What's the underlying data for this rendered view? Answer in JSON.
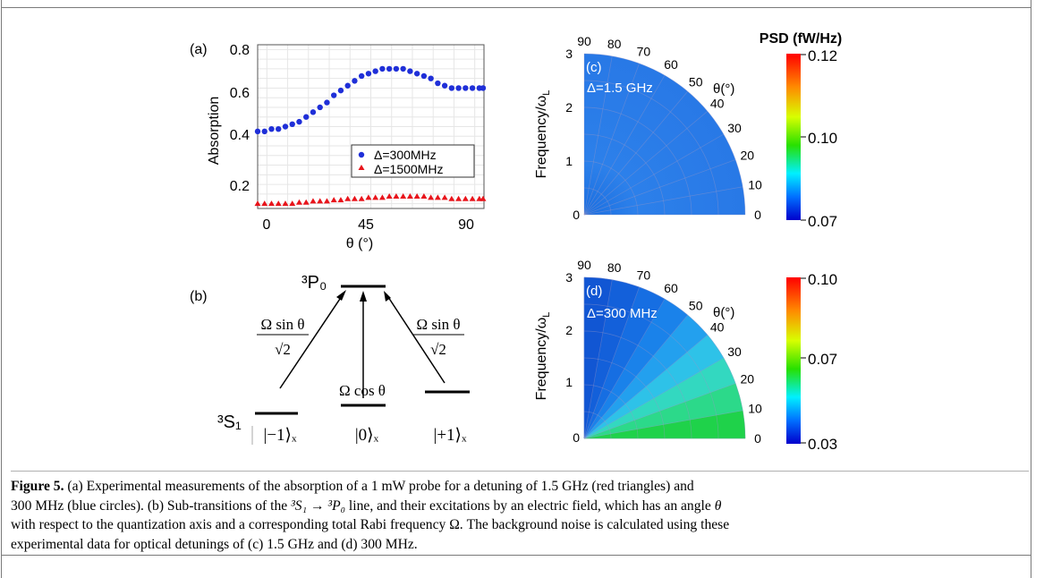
{
  "panel_a": {
    "label": "(a)",
    "ylabel": "Absorption",
    "xlabel": "θ (°)",
    "yticks": [
      "0.8",
      "0.6",
      "0.4",
      "0.2"
    ],
    "xticks": [
      "0",
      "45",
      "90"
    ],
    "legend": [
      "Δ=300MHz",
      "Δ=1500MHz"
    ],
    "colors": {
      "blue": "#1f2fd8",
      "red": "#e8141b"
    }
  },
  "chart_data": {
    "type": "scatter",
    "xlabel": "θ (°)",
    "ylabel": "Absorption",
    "xlim": [
      -4,
      94
    ],
    "ylim": [
      0.12,
      0.8
    ],
    "xticks": [
      0,
      45,
      90
    ],
    "yticks": [
      0.2,
      0.4,
      0.6,
      0.8
    ],
    "grid": true,
    "legend_position": "lower-right",
    "series": [
      {
        "name": "Δ=300MHz",
        "marker": "circle",
        "color": "#1f2fd8",
        "x": [
          -4,
          -1,
          2,
          5,
          8,
          11,
          14,
          17,
          20,
          23,
          26,
          29,
          32,
          35,
          38,
          41,
          44,
          47,
          50,
          53,
          56,
          59,
          62,
          65,
          68,
          71,
          74,
          77,
          80,
          83,
          86,
          89,
          92,
          95
        ],
        "y": [
          0.44,
          0.44,
          0.45,
          0.45,
          0.46,
          0.47,
          0.48,
          0.5,
          0.52,
          0.54,
          0.56,
          0.59,
          0.61,
          0.63,
          0.65,
          0.67,
          0.68,
          0.69,
          0.7,
          0.7,
          0.7,
          0.7,
          0.69,
          0.68,
          0.67,
          0.66,
          0.64,
          0.63,
          0.62,
          0.62,
          0.62,
          0.62,
          0.62,
          0.62
        ]
      },
      {
        "name": "Δ=1500MHz",
        "marker": "triangle",
        "color": "#e8141b",
        "x": [
          -4,
          -1,
          2,
          5,
          8,
          11,
          14,
          17,
          20,
          23,
          26,
          29,
          32,
          35,
          38,
          41,
          44,
          47,
          50,
          53,
          56,
          59,
          62,
          65,
          68,
          71,
          74,
          77,
          80,
          83,
          86,
          89,
          92,
          95
        ],
        "y": [
          0.14,
          0.14,
          0.14,
          0.14,
          0.14,
          0.14,
          0.145,
          0.145,
          0.15,
          0.15,
          0.15,
          0.155,
          0.155,
          0.16,
          0.16,
          0.16,
          0.165,
          0.165,
          0.165,
          0.17,
          0.17,
          0.17,
          0.17,
          0.17,
          0.17,
          0.165,
          0.165,
          0.165,
          0.16,
          0.16,
          0.16,
          0.16,
          0.16,
          0.16
        ]
      }
    ]
  },
  "panel_b": {
    "label": "(b)",
    "upper_level": "³P₀",
    "lower_level": "³S₁",
    "states": [
      "|−1⟩ₓ",
      "|0⟩ₓ",
      "|+1⟩ₓ"
    ],
    "left_coupling_num": "Ω sin θ",
    "left_coupling_den": "√2",
    "right_coupling_num": "Ω sin θ",
    "right_coupling_den": "√2",
    "center_coupling": "Ω cos θ"
  },
  "panel_c": {
    "label": "(c)",
    "annotation": "Δ=1.5 GHz",
    "ylabel": "Frequency/ω",
    "ylabel_sub": "L",
    "angle_label": "θ(°)",
    "radial_ticks": [
      "0",
      "1",
      "2",
      "3"
    ],
    "angle_ticks": [
      "0",
      "10",
      "20",
      "30",
      "40",
      "50",
      "60",
      "70",
      "80",
      "90"
    ],
    "colorbar_title": "PSD (fW/Hz)",
    "colorbar_ticks": [
      "0.12",
      "0.10",
      "0.07"
    ]
  },
  "panel_d": {
    "label": "(d)",
    "annotation": "Δ=300 MHz",
    "ylabel": "Frequency/ω",
    "ylabel_sub": "L",
    "angle_label": "θ(°)",
    "radial_ticks": [
      "0",
      "1",
      "2",
      "3"
    ],
    "angle_ticks": [
      "0",
      "10",
      "20",
      "30",
      "40",
      "50",
      "60",
      "70",
      "80",
      "90"
    ],
    "colorbar_ticks": [
      "0.10",
      "0.07",
      "0.03"
    ]
  },
  "caption": {
    "label": "Figure 5.",
    "line1": " (a) Experimental measurements of the absorption of a 1 mW probe for a detuning of 1.5 GHz (red triangles) and",
    "line2a": "300 MHz (blue circles). (b) Sub-transitions of the ",
    "line2_term1": "³S₁",
    "line2_arrow": " → ",
    "line2_term2": "³P₀",
    "line2b": " line, and their excitations by an electric field, which has an angle ",
    "line2_theta": "θ",
    "line3a": "with respect to the quantization axis and a corresponding total Rabi frequency ",
    "line3_omega": "Ω",
    "line3b": ". The background noise is calculated using these",
    "line4": "experimental data for optical detunings of (c) 1.5 GHz and (d) 300 MHz."
  }
}
